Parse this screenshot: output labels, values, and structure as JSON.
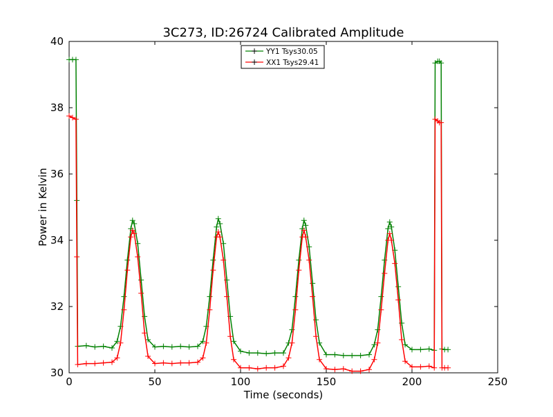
{
  "chart_data": {
    "type": "line",
    "title": "3C273, ID:26724 Calibrated Amplitude",
    "xlabel": "Time (seconds)",
    "ylabel": "Power in Kelvin",
    "xlim": [
      0,
      250
    ],
    "ylim": [
      30,
      40
    ],
    "xticks": [
      0,
      50,
      100,
      150,
      200,
      250
    ],
    "xtick_labels": [
      "0",
      "50",
      "100",
      "150",
      "200",
      "250"
    ],
    "yticks": [
      30,
      32,
      34,
      36,
      38,
      40
    ],
    "ytick_labels": [
      "30",
      "32",
      "34",
      "36",
      "38",
      "40"
    ],
    "grid": false,
    "legend_position": "top-center",
    "marker": "+",
    "series": [
      {
        "name": "YY1 Tsys30.05",
        "color": "#008000",
        "x": [
          0,
          2,
          4,
          4.5,
          5,
          10,
          15,
          20,
          25,
          28,
          30,
          32,
          34,
          36,
          37,
          38,
          40,
          42,
          44,
          46,
          50,
          55,
          60,
          65,
          70,
          75,
          78,
          80,
          82,
          84,
          86,
          87,
          88,
          90,
          92,
          94,
          96,
          100,
          105,
          110,
          115,
          120,
          125,
          128,
          130,
          132,
          134,
          136,
          137,
          138,
          140,
          142,
          144,
          146,
          150,
          155,
          160,
          165,
          170,
          175,
          178,
          180,
          182,
          184,
          186,
          187,
          188,
          190,
          192,
          194,
          196,
          200,
          205,
          210,
          213,
          213.5,
          215,
          216,
          217,
          217.5,
          219,
          221
        ],
        "y": [
          39.45,
          39.45,
          39.45,
          35.2,
          30.8,
          30.82,
          30.78,
          30.8,
          30.75,
          30.95,
          31.4,
          32.3,
          33.4,
          34.35,
          34.6,
          34.5,
          33.9,
          32.8,
          31.7,
          31.0,
          30.78,
          30.8,
          30.78,
          30.8,
          30.78,
          30.8,
          30.95,
          31.4,
          32.3,
          33.4,
          34.4,
          34.65,
          34.5,
          33.9,
          32.8,
          31.7,
          30.95,
          30.65,
          30.6,
          30.6,
          30.58,
          30.6,
          30.6,
          30.9,
          31.3,
          32.3,
          33.4,
          34.35,
          34.6,
          34.45,
          33.8,
          32.7,
          31.6,
          30.9,
          30.55,
          30.55,
          30.52,
          30.52,
          30.52,
          30.55,
          30.85,
          31.3,
          32.3,
          33.4,
          34.35,
          34.55,
          34.4,
          33.7,
          32.6,
          31.5,
          30.85,
          30.7,
          30.7,
          30.72,
          30.68,
          39.35,
          39.4,
          39.4,
          39.35,
          30.72,
          30.7,
          30.7
        ]
      },
      {
        "name": "XX1 Tsys29.41",
        "color": "#ff0000",
        "x": [
          0,
          2,
          4,
          4.5,
          5,
          10,
          15,
          20,
          25,
          28,
          30,
          32,
          34,
          36,
          37,
          38,
          40,
          42,
          44,
          46,
          50,
          55,
          60,
          65,
          70,
          75,
          78,
          80,
          82,
          84,
          86,
          87,
          88,
          90,
          92,
          94,
          96,
          100,
          105,
          110,
          115,
          120,
          125,
          128,
          130,
          132,
          134,
          136,
          137,
          138,
          140,
          142,
          144,
          146,
          150,
          155,
          160,
          165,
          170,
          175,
          178,
          180,
          182,
          184,
          186,
          187,
          188,
          190,
          192,
          194,
          196,
          200,
          205,
          210,
          213,
          213.5,
          215,
          216,
          217,
          217.5,
          219,
          221
        ],
        "y": [
          37.75,
          37.7,
          37.65,
          33.5,
          30.25,
          30.28,
          30.28,
          30.3,
          30.32,
          30.45,
          30.9,
          31.9,
          33.1,
          34.1,
          34.3,
          34.2,
          33.5,
          32.4,
          31.2,
          30.5,
          30.28,
          30.3,
          30.28,
          30.3,
          30.3,
          30.32,
          30.45,
          30.9,
          31.9,
          33.1,
          34.1,
          34.25,
          34.1,
          33.4,
          32.3,
          31.1,
          30.4,
          30.15,
          30.15,
          30.12,
          30.15,
          30.15,
          30.2,
          30.45,
          30.9,
          31.9,
          33.1,
          34.1,
          34.3,
          34.1,
          33.4,
          32.3,
          31.1,
          30.4,
          30.12,
          30.1,
          30.12,
          30.05,
          30.05,
          30.1,
          30.4,
          30.9,
          31.9,
          33.0,
          34.0,
          34.2,
          34.0,
          33.3,
          32.2,
          31.0,
          30.35,
          30.18,
          30.18,
          30.2,
          30.15,
          37.65,
          37.6,
          37.55,
          37.55,
          30.15,
          30.15,
          30.15
        ]
      }
    ]
  }
}
